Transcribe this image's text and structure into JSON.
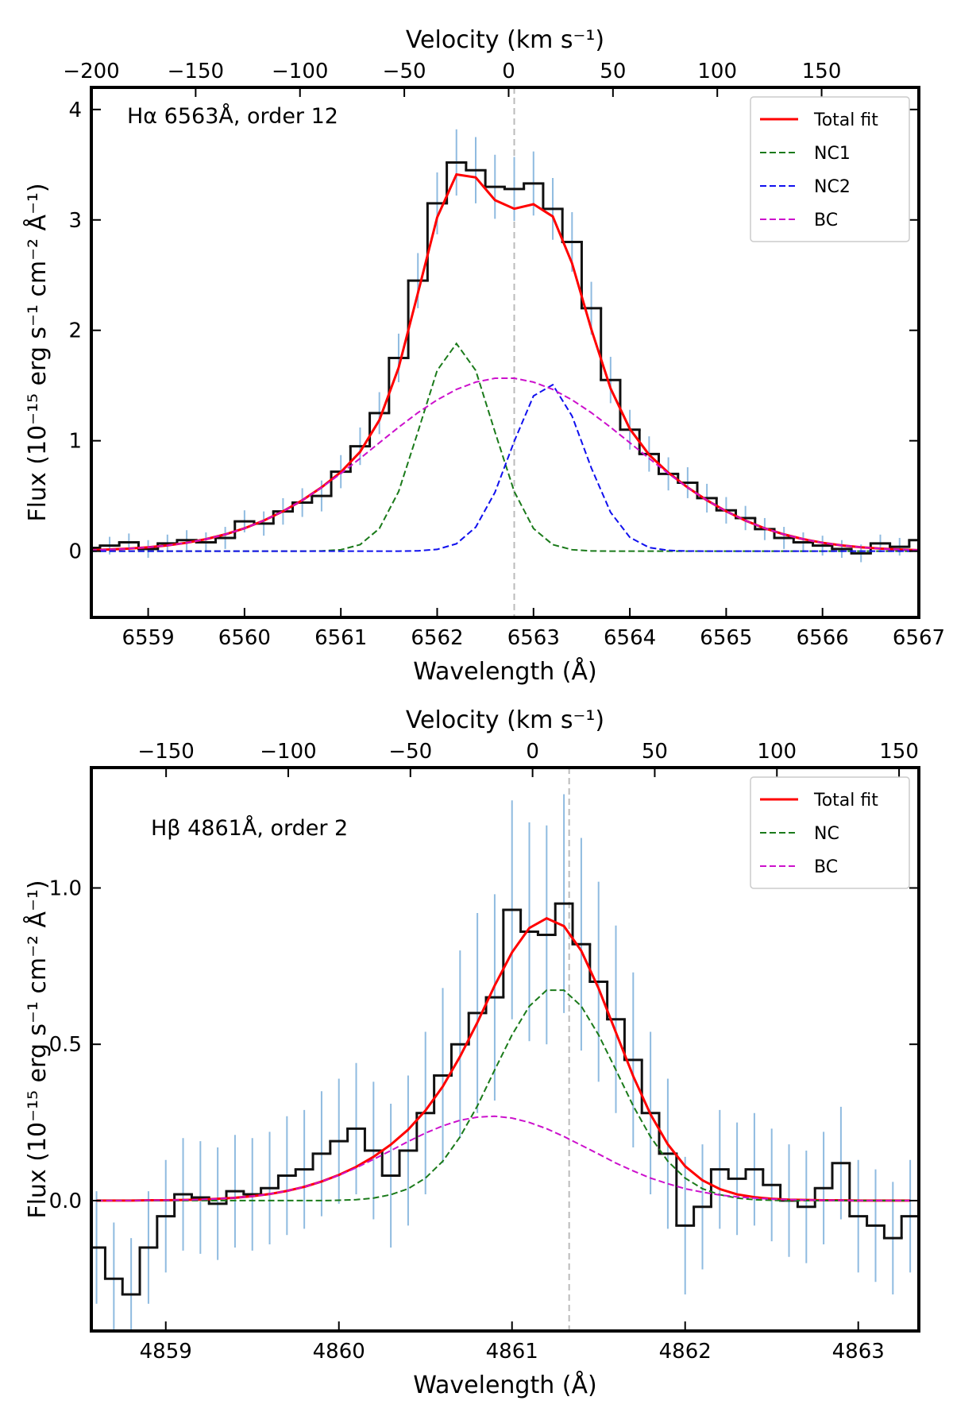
{
  "chart_data": [
    {
      "type": "line",
      "annotation": "Hα 6563Å, order 12",
      "xlabel": "Wavelength (Å)",
      "ylabel": "Flux (10⁻¹⁵ erg s⁻¹ cm⁻² Å⁻¹)",
      "x2label": "Velocity (km s⁻¹)",
      "xlim": [
        6558.41,
        6567.0
      ],
      "ylim": [
        -0.6,
        4.2
      ],
      "x2lim": [
        -200,
        196.6
      ],
      "xticks": [
        6559,
        6560,
        6561,
        6562,
        6563,
        6564,
        6565,
        6566,
        6567
      ],
      "yticks": [
        0,
        1,
        2,
        3,
        4
      ],
      "x2ticks": [
        {
          "value": -200,
          "label": "−200"
        },
        {
          "value": -150,
          "label": "−150"
        },
        {
          "value": -100,
          "label": "−100"
        },
        {
          "value": -50,
          "label": "−50"
        },
        0,
        50,
        100,
        150
      ],
      "vline": 6562.8,
      "vline_color": "#bbbbbb",
      "legend": "upper right",
      "x": [
        6558.4,
        6558.6,
        6558.8,
        6559,
        6559.2,
        6559.4,
        6559.6,
        6559.8,
        6560,
        6560.2,
        6560.4,
        6560.6,
        6560.8,
        6561,
        6561.2,
        6561.4,
        6561.6,
        6561.8,
        6562,
        6562.2,
        6562.4,
        6562.6,
        6562.8,
        6563,
        6563.2,
        6563.4,
        6563.6,
        6563.8,
        6564,
        6564.2,
        6564.4,
        6564.6,
        6564.8,
        6565,
        6565.2,
        6565.4,
        6565.6,
        6565.8,
        6566,
        6566.2,
        6566.4,
        6566.6,
        6566.8,
        6567
      ],
      "series": [
        {
          "color": "#111111",
          "error_color": "#8fbbe0",
          "drawstyle": "steps-mid",
          "linestyle": "solid",
          "values": [
            0.03,
            0.05,
            0.08,
            0.02,
            0.07,
            0.1,
            0.08,
            0.12,
            0.27,
            0.25,
            0.36,
            0.44,
            0.5,
            0.72,
            0.95,
            1.25,
            1.75,
            2.45,
            3.15,
            3.52,
            3.45,
            3.3,
            3.28,
            3.33,
            3.1,
            2.8,
            2.2,
            1.55,
            1.1,
            0.88,
            0.7,
            0.62,
            0.48,
            0.37,
            0.3,
            0.2,
            0.12,
            0.08,
            0.05,
            0.02,
            -0.02,
            0.07,
            0.04,
            0.1
          ],
          "errors": [
            0.08,
            0.08,
            0.08,
            0.08,
            0.08,
            0.09,
            0.09,
            0.1,
            0.1,
            0.11,
            0.12,
            0.13,
            0.14,
            0.15,
            0.17,
            0.19,
            0.22,
            0.25,
            0.28,
            0.3,
            0.3,
            0.29,
            0.29,
            0.29,
            0.28,
            0.27,
            0.24,
            0.21,
            0.18,
            0.16,
            0.15,
            0.14,
            0.13,
            0.12,
            0.11,
            0.1,
            0.1,
            0.09,
            0.09,
            0.08,
            0.08,
            0.08,
            0.08,
            0.08
          ]
        },
        {
          "name": "Total fit",
          "color": "#ff0000",
          "linestyle": "solid",
          "values": [
            0.009,
            0.015,
            0.023,
            0.035,
            0.052,
            0.076,
            0.109,
            0.152,
            0.207,
            0.277,
            0.361,
            0.461,
            0.578,
            0.716,
            0.899,
            1.187,
            1.662,
            2.337,
            3.023,
            3.412,
            3.385,
            3.179,
            3.101,
            3.142,
            3.031,
            2.607,
            2.01,
            1.474,
            1.107,
            0.873,
            0.71,
            0.577,
            0.461,
            0.361,
            0.277,
            0.207,
            0.152,
            0.109,
            0.076,
            0.052,
            0.035,
            0.023,
            0.015,
            0.009
          ]
        },
        {
          "name": "NC1",
          "color": "#1a7a1a",
          "linestyle": "dashed",
          "values": [
            0,
            0,
            0,
            0,
            0,
            0,
            0,
            0,
            0,
            0,
            0,
            0,
            0.002,
            0.013,
            0.059,
            0.205,
            0.54,
            1.08,
            1.637,
            1.88,
            1.637,
            1.08,
            0.54,
            0.205,
            0.059,
            0.013,
            0.002,
            0,
            0,
            0,
            0,
            0,
            0,
            0,
            0,
            0,
            0,
            0,
            0,
            0,
            0,
            0,
            0,
            0
          ]
        },
        {
          "name": "NC2",
          "color": "#1010ee",
          "linestyle": "dashed",
          "values": [
            0,
            0,
            0,
            0,
            0,
            0,
            0,
            0,
            0,
            0,
            0,
            0,
            0,
            0,
            0,
            0,
            0,
            0.003,
            0.016,
            0.067,
            0.217,
            0.533,
            0.995,
            1.406,
            1.507,
            1.224,
            0.754,
            0.352,
            0.125,
            0.033,
            0.007,
            0.001,
            0,
            0,
            0,
            0,
            0,
            0,
            0,
            0,
            0,
            0,
            0,
            0
          ]
        },
        {
          "name": "BC",
          "color": "#cc11cc",
          "linestyle": "dashed",
          "values": [
            0.009,
            0.015,
            0.023,
            0.035,
            0.052,
            0.076,
            0.109,
            0.152,
            0.207,
            0.277,
            0.361,
            0.461,
            0.576,
            0.703,
            0.84,
            0.982,
            1.122,
            1.254,
            1.37,
            1.465,
            1.531,
            1.566,
            1.566,
            1.531,
            1.465,
            1.37,
            1.254,
            1.122,
            0.982,
            0.84,
            0.703,
            0.576,
            0.461,
            0.361,
            0.277,
            0.207,
            0.152,
            0.109,
            0.076,
            0.052,
            0.035,
            0.023,
            0.015,
            0.009
          ]
        }
      ]
    },
    {
      "type": "line",
      "annotation": "Hβ 4861Å, order 2",
      "xlabel": "Wavelength (Å)",
      "ylabel": "Flux (10⁻¹⁵ erg s⁻¹ cm⁻² Å⁻¹)",
      "x2label": "Velocity (km s⁻¹)",
      "xlim": [
        4858.57,
        4863.35
      ],
      "ylim": [
        -0.417,
        1.385
      ],
      "x2lim": [
        -180.6,
        158.1
      ],
      "xticks": [
        4859,
        4860,
        4861,
        4862,
        4863
      ],
      "yticks": [
        {
          "value": 0,
          "label": "0.0"
        },
        0.5,
        {
          "value": 1,
          "label": "1.0"
        }
      ],
      "x2ticks": [
        {
          "value": -150,
          "label": "−150"
        },
        {
          "value": -100,
          "label": "−100"
        },
        {
          "value": -50,
          "label": "−50"
        },
        0,
        50,
        100,
        150
      ],
      "vline": 4861.33,
      "vline_color": "#bbbbbb",
      "legend": "upper right",
      "x": [
        4858.6,
        4858.7,
        4858.8,
        4858.9,
        4859,
        4859.1,
        4859.2,
        4859.3,
        4859.4,
        4859.5,
        4859.6,
        4859.7,
        4859.8,
        4859.9,
        4860,
        4860.1,
        4860.2,
        4860.3,
        4860.4,
        4860.5,
        4860.6,
        4860.7,
        4860.8,
        4860.9,
        4861,
        4861.1,
        4861.2,
        4861.3,
        4861.4,
        4861.5,
        4861.6,
        4861.7,
        4861.8,
        4861.9,
        4862,
        4862.1,
        4862.2,
        4862.3,
        4862.4,
        4862.5,
        4862.6,
        4862.7,
        4862.8,
        4862.9,
        4863,
        4863.1,
        4863.2,
        4863.3
      ],
      "series": [
        {
          "color": "#111111",
          "error_color": "#8fbbe0",
          "drawstyle": "steps-mid",
          "linestyle": "solid",
          "values": [
            -0.15,
            -0.25,
            -0.3,
            -0.15,
            -0.05,
            0.02,
            0.01,
            -0.01,
            0.03,
            0.02,
            0.04,
            0.08,
            0.1,
            0.15,
            0.19,
            0.23,
            0.16,
            0.08,
            0.16,
            0.28,
            0.4,
            0.5,
            0.6,
            0.65,
            0.93,
            0.86,
            0.85,
            0.95,
            0.82,
            0.7,
            0.58,
            0.45,
            0.28,
            0.15,
            -0.08,
            -0.02,
            0.1,
            0.07,
            0.1,
            0.05,
            0.0,
            -0.02,
            0.04,
            0.12,
            -0.05,
            -0.08,
            -0.12,
            -0.05
          ],
          "errors": [
            0.18,
            0.18,
            0.18,
            0.18,
            0.18,
            0.18,
            0.18,
            0.18,
            0.18,
            0.18,
            0.18,
            0.19,
            0.19,
            0.2,
            0.2,
            0.21,
            0.22,
            0.23,
            0.24,
            0.26,
            0.28,
            0.3,
            0.32,
            0.33,
            0.35,
            0.35,
            0.35,
            0.35,
            0.34,
            0.32,
            0.3,
            0.28,
            0.26,
            0.24,
            0.22,
            0.2,
            0.19,
            0.18,
            0.18,
            0.18,
            0.18,
            0.18,
            0.18,
            0.18,
            0.18,
            0.18,
            0.18,
            0.18
          ]
        },
        {
          "name": "Total fit",
          "color": "#ff0000",
          "linestyle": "solid",
          "values": [
            0,
            0,
            0,
            0.001,
            0.001,
            0.002,
            0.003,
            0.006,
            0.009,
            0.014,
            0.021,
            0.031,
            0.044,
            0.061,
            0.082,
            0.108,
            0.14,
            0.179,
            0.227,
            0.288,
            0.365,
            0.461,
            0.57,
            0.688,
            0.794,
            0.872,
            0.903,
            0.878,
            0.799,
            0.679,
            0.538,
            0.398,
            0.276,
            0.18,
            0.11,
            0.065,
            0.037,
            0.02,
            0.011,
            0.006,
            0.003,
            0.002,
            0.001,
            0.001,
            0,
            0,
            0,
            0
          ]
        },
        {
          "name": "NC",
          "color": "#1a7a1a",
          "linestyle": "dashed",
          "values": [
            0,
            0,
            0,
            0,
            0,
            0,
            0,
            0,
            0,
            0,
            0,
            0,
            0,
            0,
            0.001,
            0.003,
            0.008,
            0.019,
            0.038,
            0.072,
            0.126,
            0.204,
            0.303,
            0.418,
            0.53,
            0.622,
            0.673,
            0.673,
            0.622,
            0.53,
            0.418,
            0.303,
            0.204,
            0.126,
            0.072,
            0.038,
            0.019,
            0.008,
            0.003,
            0.001,
            0,
            0,
            0,
            0,
            0,
            0,
            0,
            0
          ]
        },
        {
          "name": "BC",
          "color": "#cc11cc",
          "linestyle": "dashed",
          "values": [
            0,
            0,
            0,
            0.001,
            0.001,
            0.002,
            0.003,
            0.006,
            0.009,
            0.014,
            0.021,
            0.031,
            0.044,
            0.061,
            0.081,
            0.105,
            0.132,
            0.16,
            0.189,
            0.216,
            0.239,
            0.257,
            0.267,
            0.27,
            0.264,
            0.25,
            0.23,
            0.205,
            0.177,
            0.149,
            0.12,
            0.095,
            0.072,
            0.054,
            0.038,
            0.027,
            0.018,
            0.012,
            0.008,
            0.005,
            0.003,
            0.002,
            0.001,
            0.001,
            0,
            0,
            0,
            0
          ]
        }
      ]
    }
  ]
}
